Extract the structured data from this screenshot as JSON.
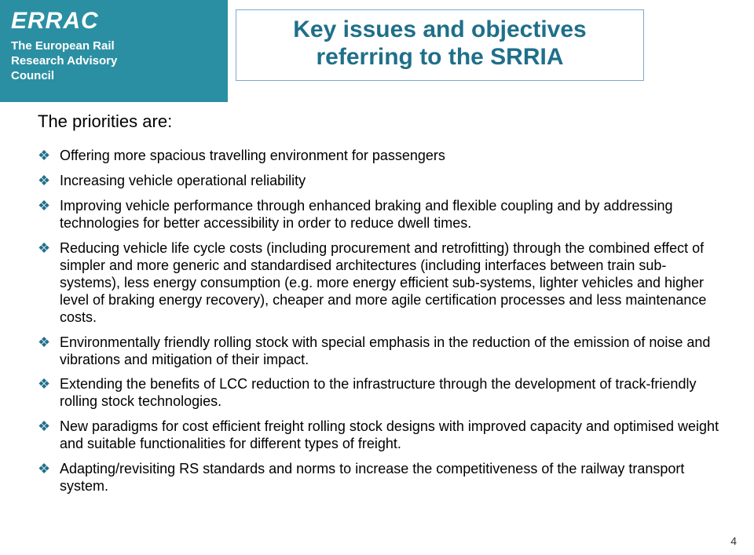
{
  "colors": {
    "brand_bg": "#2b8fa3",
    "brand_text": "#ffffff",
    "title_color": "#1f6f8a",
    "title_border": "#7fa8c9",
    "bullet_color": "#1f6f8a",
    "body_text": "#000000",
    "page_bg": "#ffffff"
  },
  "fonts": {
    "family": "Arial, Helvetica, sans-serif",
    "title_size_pt": 30,
    "lead_size_pt": 22,
    "bullet_size_pt": 18,
    "logo_size_pt": 30,
    "logo_sub_size_pt": 15
  },
  "logo": {
    "title": "ERRAC",
    "sub_line1": "The European Rail",
    "sub_line2": "Research Advisory",
    "sub_line3": "Council"
  },
  "slide_title": {
    "line1": "Key issues and objectives",
    "line2": "referring to the SRRIA"
  },
  "lead_text": "The priorities are:",
  "bullets": [
    "Offering more spacious travelling environment for passengers",
    "Increasing vehicle operational reliability",
    "Improving vehicle performance through enhanced braking and flexible coupling and by addressing technologies for better accessibility in order to reduce dwell times.",
    "Reducing vehicle life cycle costs (including procurement and retrofitting) through the combined effect of simpler and more generic and standardised architectures (including interfaces between train sub-systems), less energy consumption (e.g. more energy efficient sub-systems, lighter vehicles and higher level of braking energy recovery), cheaper and more agile certification processes and less maintenance costs.",
    "Environmentally friendly rolling stock with special emphasis in the reduction of the emission of noise and vibrations and mitigation of their impact.",
    "Extending the benefits of LCC reduction to the infrastructure through the development of track-friendly rolling stock technologies.",
    "New paradigms for cost efficient freight rolling stock designs with improved capacity and optimised weight and suitable functionalities for different types of freight.",
    "Adapting/revisiting RS standards and norms to increase the competitiveness of the railway transport system."
  ],
  "page_number": "4"
}
